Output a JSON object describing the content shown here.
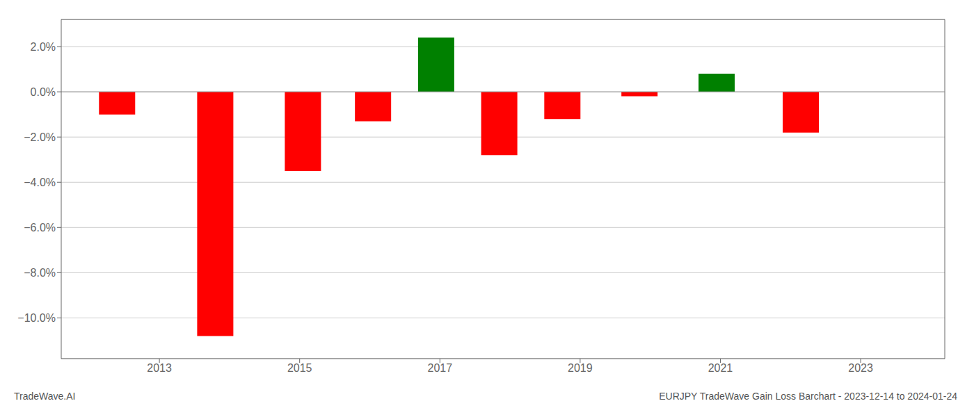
{
  "chart_data": {
    "type": "bar",
    "title": "EURJPY TradeWave Gain Loss Barchart - 2023-12-14 to 2024-01-24",
    "annotations": [
      "TradeWave.AI"
    ],
    "x": [
      2012.4,
      2013.8,
      2015.05,
      2016.05,
      2016.95,
      2017.85,
      2018.75,
      2019.85,
      2020.95,
      2022.15
    ],
    "values": [
      -0.01,
      -0.108,
      -0.035,
      -0.013,
      0.024,
      -0.028,
      -0.012,
      -0.002,
      0.008,
      -0.018
    ],
    "colors": [
      "#ff0000",
      "#ff0000",
      "#ff0000",
      "#ff0000",
      "#008000",
      "#ff0000",
      "#ff0000",
      "#ff0000",
      "#008000",
      "#ff0000"
    ],
    "xlim": [
      2011.6,
      2024.2
    ],
    "xticks": [
      2013,
      2015,
      2017,
      2019,
      2021,
      2023
    ],
    "ylim": [
      -0.118,
      0.032
    ],
    "yticks": [
      {
        "value": -0.1,
        "label": "−10.0%"
      },
      {
        "value": -0.08,
        "label": "−8.0%"
      },
      {
        "value": -0.06,
        "label": "−6.0%"
      },
      {
        "value": -0.04,
        "label": "−4.0%"
      },
      {
        "value": -0.02,
        "label": "−2.0%"
      },
      {
        "value": 0,
        "label": "0.0%"
      },
      {
        "value": 0.02,
        "label": "2.0%"
      }
    ],
    "grid": true
  }
}
